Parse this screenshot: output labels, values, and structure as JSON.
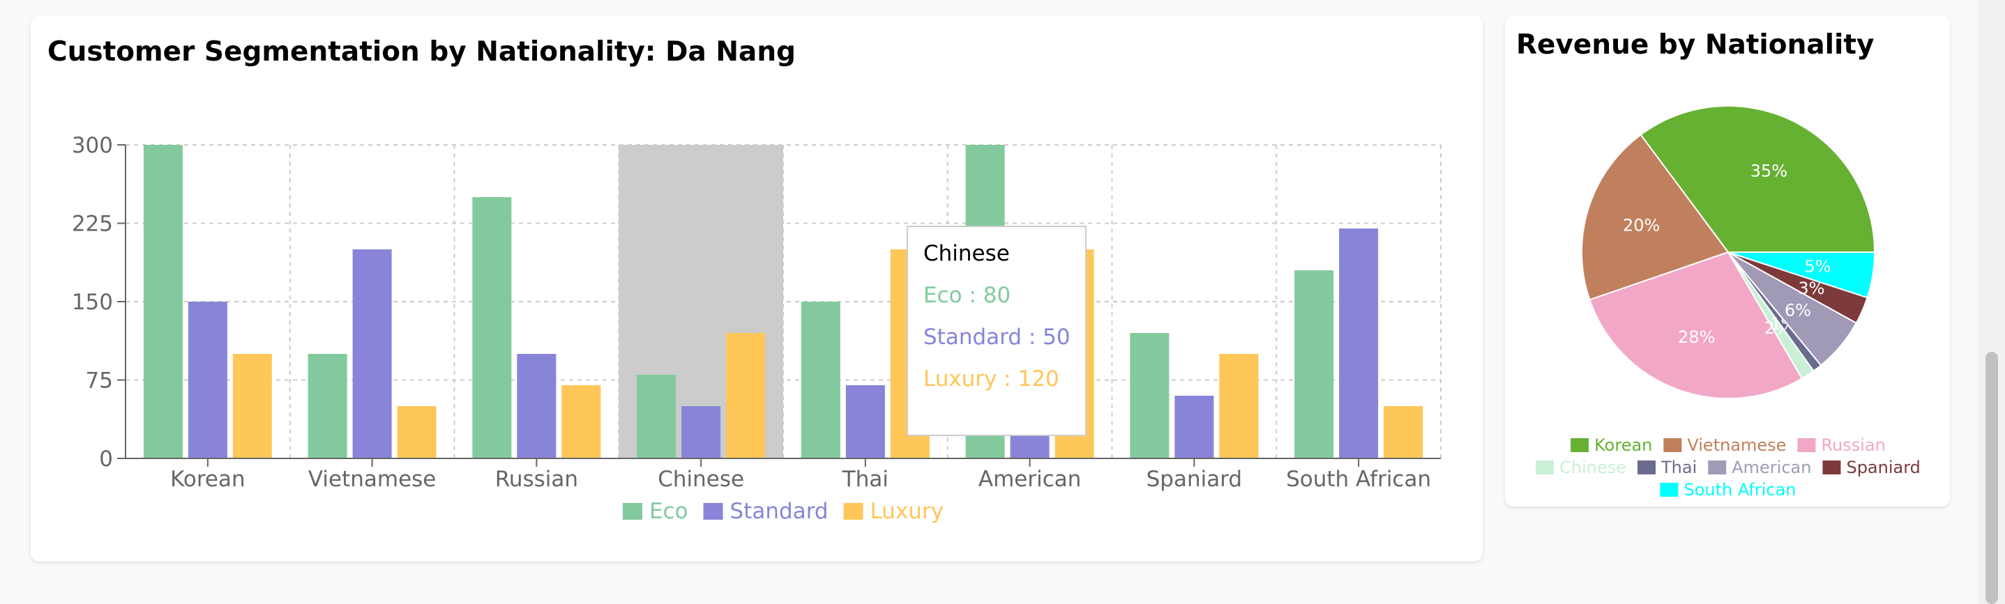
{
  "bar_card": {
    "title": "Customer Segmentation by Nationality: Da Nang"
  },
  "pie_card": {
    "title": "Revenue by Nationality"
  },
  "chart_data": [
    {
      "type": "bar",
      "title": "Customer Segmentation by Nationality: Da Nang",
      "categories": [
        "Korean",
        "Vietnamese",
        "Russian",
        "Chinese",
        "Thai",
        "American",
        "Spaniard",
        "South African"
      ],
      "series": [
        {
          "name": "Eco",
          "color": "#82ca9d",
          "values": [
            300,
            100,
            250,
            80,
            150,
            300,
            120,
            180
          ]
        },
        {
          "name": "Standard",
          "color": "#8884d8",
          "values": [
            150,
            200,
            100,
            50,
            70,
            80,
            60,
            220
          ]
        },
        {
          "name": "Luxury",
          "color": "#ffc658",
          "values": [
            100,
            50,
            70,
            120,
            200,
            200,
            100,
            50
          ]
        }
      ],
      "ylim": [
        0,
        300
      ],
      "yticks": [
        0,
        75,
        150,
        225,
        300
      ],
      "grid": true,
      "legend": "bottom",
      "highlighted_category": "Chinese",
      "tooltip": {
        "title": "Chinese",
        "items": [
          {
            "label": "Eco : 80",
            "color": "#82ca9d"
          },
          {
            "label": "Standard : 50",
            "color": "#8884d8"
          },
          {
            "label": "Luxury : 120",
            "color": "#ffc658"
          }
        ]
      }
    },
    {
      "type": "pie",
      "title": "Revenue by Nationality",
      "legend": "bottom",
      "slices": [
        {
          "name": "Korean",
          "value": 35,
          "label": "35%",
          "color": "#66b032"
        },
        {
          "name": "Vietnamese",
          "value": 20,
          "label": "20%",
          "color": "#c1805d"
        },
        {
          "name": "Russian",
          "value": 28,
          "label": "28%",
          "color": "#f2a7c6"
        },
        {
          "name": "Chinese",
          "value": 1.5,
          "label": "2%",
          "color": "#c9f0d6"
        },
        {
          "name": "Thai",
          "value": 1,
          "label": "1%",
          "color": "#6b6b8e"
        },
        {
          "name": "American",
          "value": 6,
          "label": "6%",
          "color": "#a09ab7"
        },
        {
          "name": "Spaniard",
          "value": 3,
          "label": "3%",
          "color": "#7d3a3a"
        },
        {
          "name": "South African",
          "value": 5,
          "label": "5%",
          "color": "#00ffff"
        }
      ]
    }
  ]
}
